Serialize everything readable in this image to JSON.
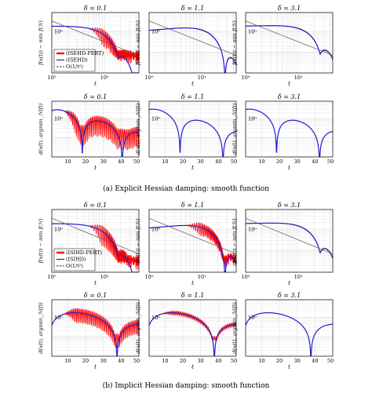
{
  "captions": {
    "a": "(a) Explicit Hessian damping: smooth function",
    "b": "(b) Implicit Hessian damping: smooth function"
  },
  "legends": {
    "a": [
      "(ISEHD-PERT)",
      "(ISEHD)",
      "O(1/t²)"
    ],
    "b": [
      "(ISIHD-PERT)",
      "(ISIHD)",
      "O(1/t²)"
    ]
  },
  "colors": {
    "pert": "#ff0000",
    "method": "#1f1fd6",
    "ref": "#555555",
    "grid": "#dcdcdc"
  },
  "chart_data": [
    {
      "type": "line",
      "id": "a-top-1",
      "title": "δ = 0.1",
      "xlabel": "t",
      "ylabel": "f(x(t)) − min f(ℋ)",
      "xscale": "log",
      "yscale": "log",
      "xlim": [
        1,
        45
      ],
      "ylim": [
        0.01,
        8
      ],
      "xticks": [
        "10⁰",
        "10¹"
      ],
      "yticks": [
        "10⁰"
      ],
      "grid": true,
      "legend": "left",
      "series": [
        "pert",
        "method",
        "ref"
      ]
    },
    {
      "type": "line",
      "id": "a-top-2",
      "title": "δ = 1.1",
      "xlabel": "t",
      "ylabel": "f(x(t)) − min f(ℋ)",
      "xscale": "log",
      "yscale": "log",
      "xlim": [
        1,
        45
      ],
      "ylim": [
        0.01,
        8
      ],
      "xticks": [
        "10⁰",
        "10¹"
      ],
      "yticks": [
        "10⁰"
      ],
      "grid": true,
      "series": [
        "pert",
        "method",
        "ref"
      ]
    },
    {
      "type": "line",
      "id": "a-top-3",
      "title": "δ = 3.1",
      "xlabel": "t",
      "ylabel": "f(x(t)) − min f(ℋ)",
      "xscale": "log",
      "yscale": "log",
      "xlim": [
        1,
        45
      ],
      "ylim": [
        0.01,
        8
      ],
      "xticks": [
        "10⁰",
        "10¹"
      ],
      "yticks": [
        "10⁰"
      ],
      "grid": true,
      "series": [
        "pert",
        "method",
        "ref"
      ]
    },
    {
      "type": "line",
      "id": "a-bot-1",
      "title": "δ = 0.1",
      "xlabel": "t",
      "ylabel": "d(x(t), argmin_ℋ(f))",
      "xscale": "linear",
      "yscale": "log",
      "xlim": [
        1,
        50
      ],
      "ylim": [
        0.01,
        8
      ],
      "xticks": [
        "10",
        "20",
        "30",
        "40",
        "50"
      ],
      "yticks": [
        "10⁰"
      ],
      "grid": true,
      "series": [
        "pert",
        "method"
      ]
    },
    {
      "type": "line",
      "id": "a-bot-2",
      "title": "δ = 1.1",
      "xlabel": "t",
      "ylabel": "d(x(t), argmin_ℋ(f))",
      "xscale": "linear",
      "yscale": "log",
      "xlim": [
        1,
        50
      ],
      "ylim": [
        0.01,
        8
      ],
      "xticks": [
        "10",
        "20",
        "30",
        "40",
        "50"
      ],
      "yticks": [
        "10⁰"
      ],
      "grid": true,
      "series": [
        "pert",
        "method"
      ]
    },
    {
      "type": "line",
      "id": "a-bot-3",
      "title": "δ = 3.1",
      "xlabel": "t",
      "ylabel": "d(x(t), argmin_ℋ(f))",
      "xscale": "linear",
      "yscale": "log",
      "xlim": [
        1,
        50
      ],
      "ylim": [
        0.01,
        8
      ],
      "xticks": [
        "10",
        "20",
        "30",
        "40",
        "50"
      ],
      "yticks": [
        "10⁰"
      ],
      "grid": true,
      "series": [
        "pert",
        "method"
      ]
    },
    {
      "type": "line",
      "id": "b-top-1",
      "title": "δ = 0.1",
      "xlabel": "t",
      "ylabel": "f(x(t)) − min f(ℋ)",
      "xscale": "log",
      "yscale": "log",
      "xlim": [
        1,
        45
      ],
      "ylim": [
        0.01,
        8
      ],
      "xticks": [
        "10⁰",
        "10¹"
      ],
      "yticks": [
        "10⁰"
      ],
      "grid": true,
      "legend": "left",
      "series": [
        "pert",
        "method",
        "ref"
      ]
    },
    {
      "type": "line",
      "id": "b-top-2",
      "title": "δ = 1.1",
      "xlabel": "t",
      "ylabel": "f(x(t)) − min f(ℋ)",
      "xscale": "log",
      "yscale": "log",
      "xlim": [
        1,
        45
      ],
      "ylim": [
        0.01,
        8
      ],
      "xticks": [
        "10⁰",
        "10¹"
      ],
      "yticks": [
        "10⁰"
      ],
      "grid": true,
      "series": [
        "pert",
        "method",
        "ref"
      ]
    },
    {
      "type": "line",
      "id": "b-top-3",
      "title": "δ = 3.1",
      "xlabel": "t",
      "ylabel": "f(x(t)) − min f(ℋ)",
      "xscale": "log",
      "yscale": "log",
      "xlim": [
        1,
        45
      ],
      "ylim": [
        0.01,
        8
      ],
      "xticks": [
        "10⁰",
        "10¹"
      ],
      "yticks": [
        "10⁰"
      ],
      "grid": true,
      "series": [
        "pert",
        "method",
        "ref"
      ]
    },
    {
      "type": "line",
      "id": "b-bot-1",
      "title": "δ = 0.1",
      "xlabel": "t",
      "ylabel": "d(x(t), argmin_ℋ(f))",
      "xscale": "linear",
      "yscale": "log",
      "xlim": [
        1,
        50
      ],
      "ylim": [
        0.01,
        8
      ],
      "xticks": [
        "10",
        "20",
        "30",
        "40",
        "50"
      ],
      "yticks": [
        "10⁰"
      ],
      "grid": true,
      "series": [
        "pert",
        "method"
      ]
    },
    {
      "type": "line",
      "id": "b-bot-2",
      "title": "δ = 1.1",
      "xlabel": "t",
      "ylabel": "d(x(t), argmin_ℋ(f))",
      "xscale": "linear",
      "yscale": "log",
      "xlim": [
        1,
        50
      ],
      "ylim": [
        0.01,
        8
      ],
      "xticks": [
        "10",
        "20",
        "30",
        "40",
        "50"
      ],
      "yticks": [
        "10⁰"
      ],
      "grid": true,
      "series": [
        "pert",
        "method"
      ]
    },
    {
      "type": "line",
      "id": "b-bot-3",
      "title": "δ = 3.1",
      "xlabel": "t",
      "ylabel": "d(x(t), argmin_ℋ(f))",
      "xscale": "linear",
      "yscale": "log",
      "xlim": [
        1,
        50
      ],
      "ylim": [
        0.01,
        8
      ],
      "xticks": [
        "10",
        "20",
        "30",
        "40",
        "50"
      ],
      "yticks": [
        "10⁰"
      ],
      "grid": true,
      "series": [
        "pert",
        "method"
      ]
    }
  ]
}
